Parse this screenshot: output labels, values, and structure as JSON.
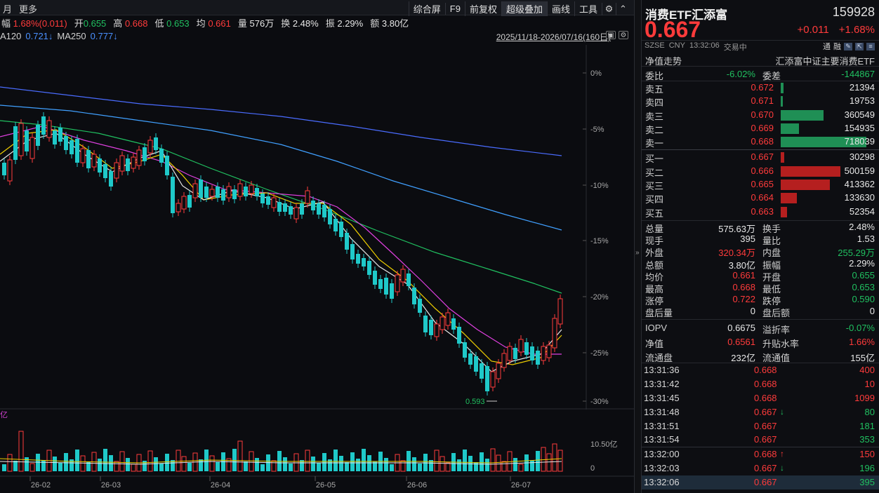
{
  "topbar": {
    "left": [
      "月",
      "更多"
    ],
    "buttons": [
      "综合屏",
      "F9",
      "前复权",
      "超级叠加",
      "画线",
      "工具"
    ],
    "active": "超级叠加"
  },
  "infobar": {
    "chg_label": "幅",
    "chg_value": "1.68%(0.011)",
    "open_label": "开",
    "open_value": "0.655",
    "high_label": "高",
    "high_value": "0.668",
    "low_label": "低",
    "low_value": "0.653",
    "avg_label": "均",
    "avg_value": "0.661",
    "vol_label": "量",
    "vol_value": "576万",
    "turn_label": "换",
    "turn_value": "2.48%",
    "amp_label": "振",
    "amp_value": "2.29%",
    "amt_label": "额",
    "amt_value": "3.80亿"
  },
  "mabar": {
    "ma120_label": "A120",
    "ma120_value": "0.721↓",
    "ma250_label": "MA250",
    "ma250_value": "0.777↓",
    "range": "2025/11/18-2026/07/16(160日)"
  },
  "chart_data": {
    "type": "candlestick",
    "y_axis_ticks": [
      "0%",
      "-5%",
      "-10%",
      "-15%",
      "-20%",
      "-25%",
      "-30%"
    ],
    "ylim": [
      -30.5,
      1.5
    ],
    "x_ticks": [
      "26-02",
      "26-03",
      "26-04",
      "26-05",
      "26-06",
      "26-07"
    ],
    "vol_ticks": [
      "10.50亿",
      "0"
    ],
    "low_annotation": "0.593",
    "vol_label": "亿",
    "colors": {
      "up": "#ff3b3b",
      "down": "#1fc9c9",
      "ma5": "#e8e8e8",
      "ma10": "#f0d000",
      "ma20": "#e040e0",
      "ma60": "#20c060",
      "ma120": "#40a0ff",
      "ma250": "#4a6cff"
    }
  },
  "quote": {
    "name": "消费ETF汇添富",
    "code": "159928",
    "price": "0.667",
    "change": "+0.011",
    "change_pct": "+1.68%",
    "market": "SZSE",
    "currency": "CNY",
    "time": "13:32:06",
    "status": "交易中",
    "tags": [
      "通",
      "融"
    ],
    "netval_label": "净值走势",
    "index_name": "汇添富中证主要消费ETF"
  },
  "weibi": {
    "k1": "委比",
    "v1": "-6.02%",
    "k2": "委差",
    "v2": "-144867"
  },
  "asks": [
    {
      "label": "卖五",
      "price": "0.672",
      "vol": "21394",
      "frac": 0.03
    },
    {
      "label": "卖四",
      "price": "0.671",
      "vol": "19753",
      "frac": 0.028
    },
    {
      "label": "卖三",
      "price": "0.670",
      "vol": "360549",
      "frac": 0.5
    },
    {
      "label": "卖二",
      "price": "0.669",
      "vol": "154935",
      "frac": 0.216
    },
    {
      "label": "卖一",
      "price": "0.668",
      "vol": "718039",
      "frac": 1.0
    }
  ],
  "bids": [
    {
      "label": "买一",
      "price": "0.667",
      "vol": "30298",
      "frac": 0.042
    },
    {
      "label": "买二",
      "price": "0.666",
      "vol": "500159",
      "frac": 0.697
    },
    {
      "label": "买三",
      "price": "0.665",
      "vol": "413362",
      "frac": 0.576
    },
    {
      "label": "买四",
      "price": "0.664",
      "vol": "133630",
      "frac": 0.186
    },
    {
      "label": "买五",
      "price": "0.663",
      "vol": "52354",
      "frac": 0.073
    }
  ],
  "stats": [
    {
      "k1": "总量",
      "v1": "575.63万",
      "c1": "white",
      "k2": "换手",
      "v2": "2.48%",
      "c2": "white"
    },
    {
      "k1": "现手",
      "v1": "395",
      "c1": "white",
      "k2": "量比",
      "v2": "1.53",
      "c2": "white"
    },
    {
      "k1": "外盘",
      "v1": "320.34万",
      "c1": "up",
      "k2": "内盘",
      "v2": "255.29万",
      "c2": "down"
    },
    {
      "k1": "总额",
      "v1": "3.80亿",
      "c1": "white",
      "k2": "振幅",
      "v2": "2.29%",
      "c2": "white"
    },
    {
      "k1": "均价",
      "v1": "0.661",
      "c1": "up",
      "k2": "开盘",
      "v2": "0.655",
      "c2": "down"
    },
    {
      "k1": "最高",
      "v1": "0.668",
      "c1": "up",
      "k2": "最低",
      "v2": "0.653",
      "c2": "down"
    },
    {
      "k1": "涨停",
      "v1": "0.722",
      "c1": "up",
      "k2": "跌停",
      "v2": "0.590",
      "c2": "down"
    },
    {
      "k1": "盘后量",
      "v1": "0",
      "c1": "white",
      "k2": "盘后额",
      "v2": "0",
      "c2": "white"
    }
  ],
  "iopv": [
    {
      "k1": "IOPV",
      "v1": "0.6675",
      "c1": "white",
      "k2": "溢折率",
      "v2": "-0.07%",
      "c2": "down"
    },
    {
      "k1": "净值",
      "v1": "0.6561",
      "c1": "up",
      "k2": "升贴水率",
      "v2": "1.66%",
      "c2": "up"
    },
    {
      "k1": "流通盘",
      "v1": "232亿",
      "c1": "white",
      "k2": "流通值",
      "v2": "155亿",
      "c2": "white"
    }
  ],
  "ticks": [
    {
      "t": "13:31:36",
      "p": "0.668",
      "ar": "",
      "v": "400",
      "vc": "up"
    },
    {
      "t": "13:31:42",
      "p": "0.668",
      "ar": "",
      "v": "10",
      "vc": "up"
    },
    {
      "t": "13:31:45",
      "p": "0.668",
      "ar": "",
      "v": "1099",
      "vc": "up"
    },
    {
      "t": "13:31:48",
      "p": "0.667",
      "ar": "↓",
      "v": "80",
      "vc": "down"
    },
    {
      "t": "13:31:51",
      "p": "0.667",
      "ar": "",
      "v": "181",
      "vc": "down"
    },
    {
      "t": "13:31:54",
      "p": "0.667",
      "ar": "",
      "v": "353",
      "vc": "down"
    },
    {
      "t": "13:32:00",
      "p": "0.668",
      "ar": "↑",
      "v": "150",
      "vc": "up"
    },
    {
      "t": "13:32:03",
      "p": "0.667",
      "ar": "↓",
      "v": "196",
      "vc": "down"
    },
    {
      "t": "13:32:06",
      "p": "0.667",
      "ar": "",
      "v": "395",
      "vc": "down"
    }
  ]
}
